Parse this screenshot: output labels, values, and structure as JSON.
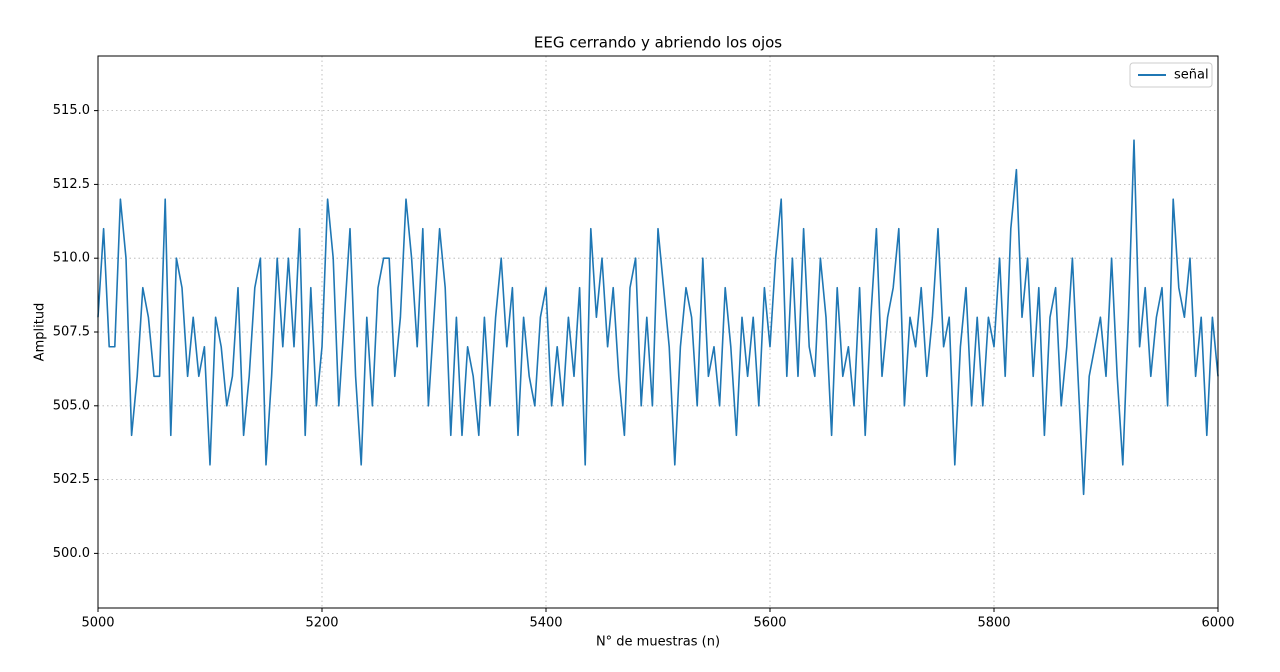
{
  "chart_data": {
    "type": "line",
    "title": "EEG cerrando y abriendo los ojos",
    "x_label": "N° de muestras (n)",
    "y_label": "Amplitud",
    "x": [
      5000,
      5005,
      5010,
      5015,
      5020,
      5025,
      5030,
      5035,
      5040,
      5045,
      5050,
      5055,
      5060,
      5065,
      5070,
      5075,
      5080,
      5085,
      5090,
      5095,
      5100,
      5105,
      5110,
      5115,
      5120,
      5125,
      5130,
      5135,
      5140,
      5145,
      5150,
      5155,
      5160,
      5165,
      5170,
      5175,
      5180,
      5185,
      5190,
      5195,
      5200,
      5205,
      5210,
      5215,
      5220,
      5225,
      5230,
      5235,
      5240,
      5245,
      5250,
      5255,
      5260,
      5265,
      5270,
      5275,
      5280,
      5285,
      5290,
      5295,
      5300,
      5305,
      5310,
      5315,
      5320,
      5325,
      5330,
      5335,
      5340,
      5345,
      5350,
      5355,
      5360,
      5365,
      5370,
      5375,
      5380,
      5385,
      5390,
      5395,
      5400,
      5405,
      5410,
      5415,
      5420,
      5425,
      5430,
      5435,
      5440,
      5445,
      5450,
      5455,
      5460,
      5465,
      5470,
      5475,
      5480,
      5485,
      5490,
      5495,
      5500,
      5505,
      5510,
      5515,
      5520,
      5525,
      5530,
      5535,
      5540,
      5545,
      5550,
      5555,
      5560,
      5565,
      5570,
      5575,
      5580,
      5585,
      5590,
      5595,
      5600,
      5605,
      5610,
      5615,
      5620,
      5625,
      5630,
      5635,
      5640,
      5645,
      5650,
      5655,
      5660,
      5665,
      5670,
      5675,
      5680,
      5685,
      5690,
      5695,
      5700,
      5705,
      5710,
      5715,
      5720,
      5725,
      5730,
      5735,
      5740,
      5745,
      5750,
      5755,
      5760,
      5765,
      5770,
      5775,
      5780,
      5785,
      5790,
      5795,
      5800,
      5805,
      5810,
      5815,
      5820,
      5825,
      5830,
      5835,
      5840,
      5845,
      5850,
      5855,
      5860,
      5865,
      5870,
      5875,
      5880,
      5885,
      5890,
      5895,
      5900,
      5905,
      5910,
      5915,
      5920,
      5925,
      5930,
      5935,
      5940,
      5945,
      5950,
      5955,
      5960,
      5965,
      5970,
      5975,
      5980,
      5985,
      5990,
      5995,
      6000
    ],
    "series": [
      {
        "name": "señal",
        "color": "#1f77b4",
        "values": [
          508,
          511,
          507,
          507,
          512,
          510,
          504,
          506,
          509,
          508,
          506,
          506,
          512,
          504,
          510,
          509,
          506,
          508,
          506,
          507,
          503,
          508,
          507,
          505,
          506,
          509,
          504,
          506,
          509,
          510,
          503,
          506,
          510,
          507,
          510,
          507,
          511,
          504,
          509,
          505,
          507,
          512,
          510,
          505,
          508,
          511,
          506,
          503,
          508,
          505,
          509,
          510,
          510,
          506,
          508,
          512,
          510,
          507,
          511,
          505,
          508,
          511,
          509,
          504,
          508,
          504,
          507,
          506,
          504,
          508,
          505,
          508,
          510,
          507,
          509,
          504,
          508,
          506,
          505,
          508,
          509,
          505,
          507,
          505,
          508,
          506,
          509,
          503,
          511,
          508,
          510,
          507,
          509,
          506,
          504,
          509,
          510,
          505,
          508,
          505,
          511,
          509,
          507,
          503,
          507,
          509,
          508,
          505,
          510,
          506,
          507,
          505,
          509,
          507,
          504,
          508,
          506,
          508,
          505,
          509,
          507,
          510,
          512,
          506,
          510,
          506,
          511,
          507,
          506,
          510,
          508,
          504,
          509,
          506,
          507,
          505,
          509,
          504,
          508,
          511,
          506,
          508,
          509,
          511,
          505,
          508,
          507,
          509,
          506,
          508,
          511,
          507,
          508,
          503,
          507,
          509,
          505,
          508,
          505,
          508,
          507,
          510,
          506,
          511,
          513,
          508,
          510,
          506,
          509,
          504,
          508,
          509,
          505,
          507,
          510,
          506,
          502,
          506,
          507,
          508,
          506,
          510,
          506,
          503,
          508,
          514,
          507,
          509,
          506,
          508,
          509,
          505,
          512,
          509,
          508,
          510,
          506,
          508,
          504,
          508,
          506
        ]
      }
    ],
    "xlim": [
      5000,
      6000
    ],
    "xticks": [
      5000,
      5200,
      5400,
      5600,
      5800,
      6000
    ],
    "ylim": [
      498.15,
      516.85
    ],
    "yticks": [
      {
        "value": 500,
        "label": "500.0"
      },
      502.5,
      {
        "value": 505,
        "label": "505.0"
      },
      507.5,
      {
        "value": 510,
        "label": "510.0"
      },
      512.5,
      {
        "value": 515,
        "label": "515.0"
      }
    ],
    "grid": true,
    "legend": "upper right"
  }
}
